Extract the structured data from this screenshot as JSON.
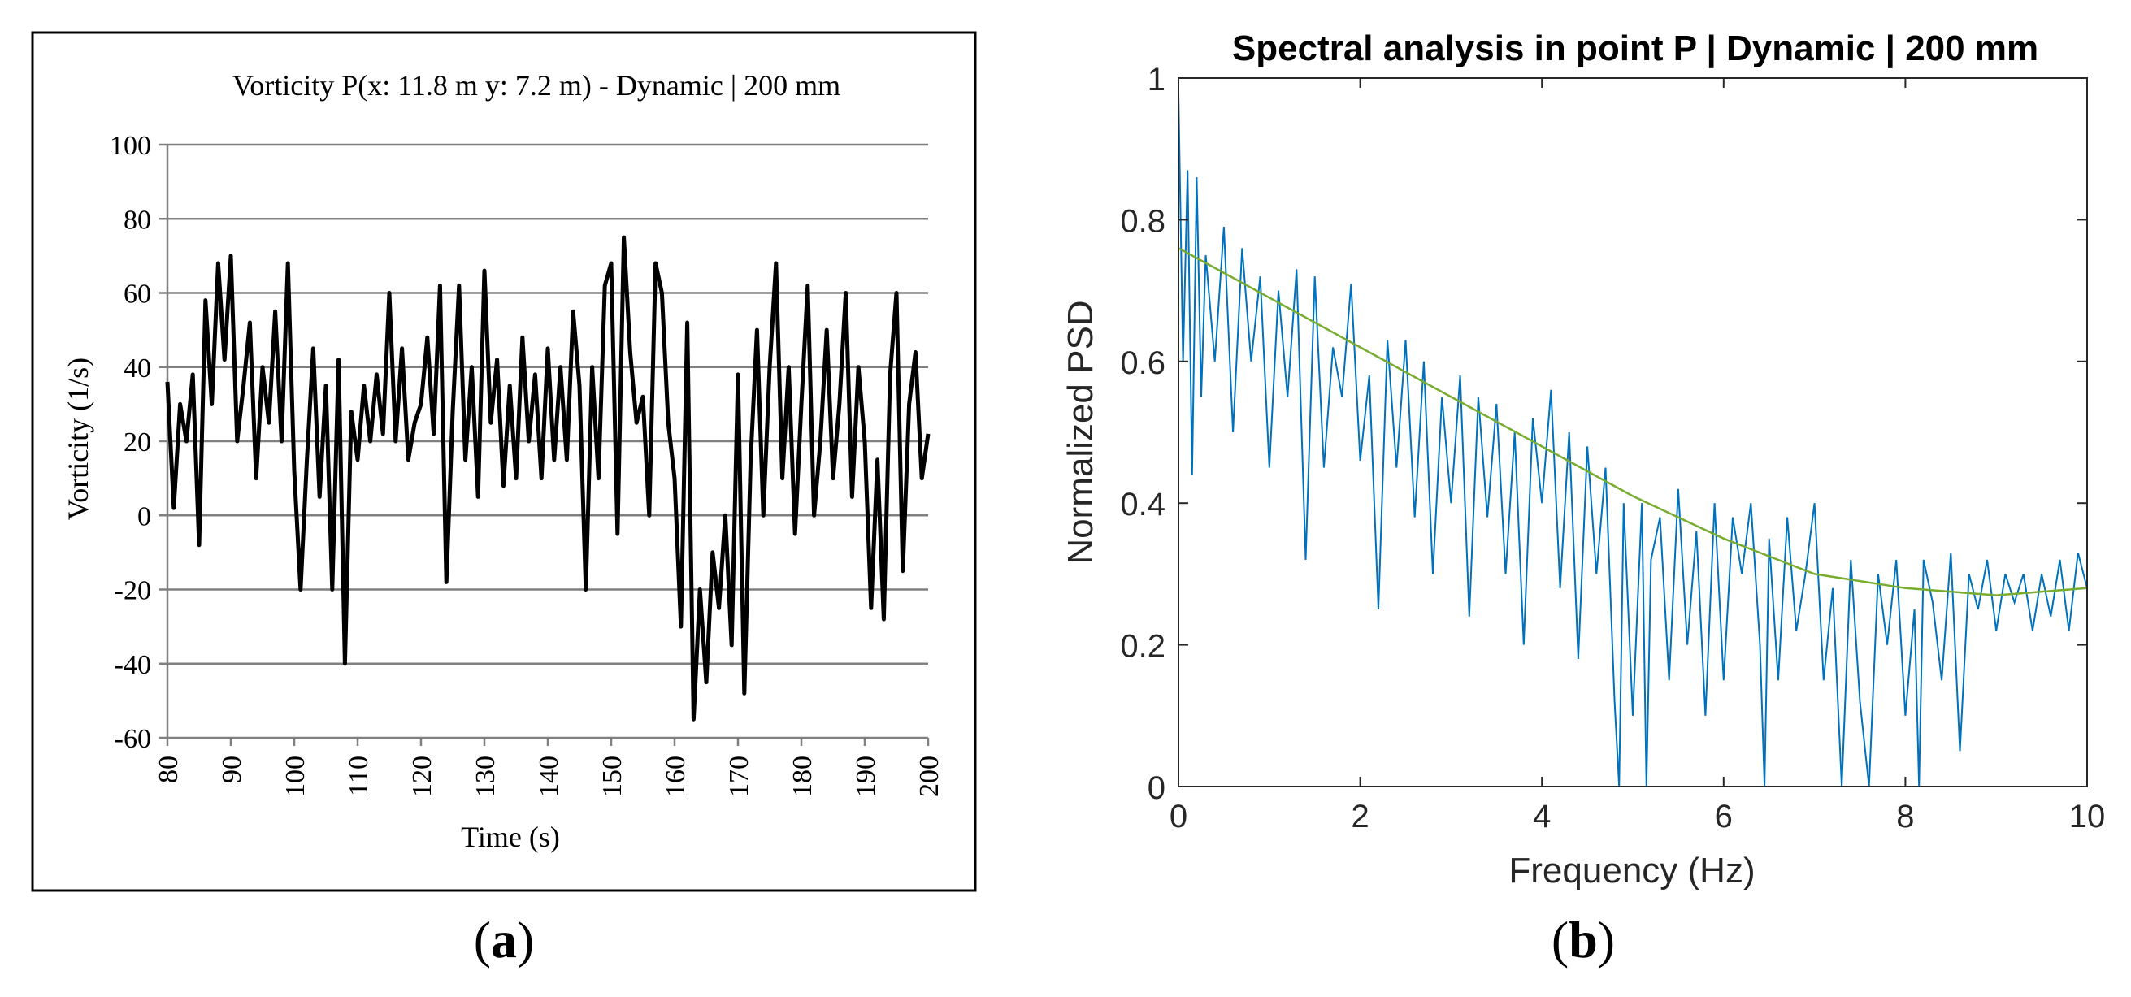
{
  "panel_labels": {
    "a": {
      "open": "(",
      "letter": "a",
      "close": ")"
    },
    "b": {
      "open": "(",
      "letter": "b",
      "close": ")"
    }
  },
  "colors": {
    "panel_a_line": "#000000",
    "panel_a_grid": "#808080",
    "panel_b_psd": "#0072BD",
    "panel_b_fit": "#77AC30"
  },
  "chart_data": [
    {
      "id": "a",
      "type": "line",
      "title": "Vorticity P(x: 11.8 m y: 7.2 m) - Dynamic  | 200 mm",
      "xlabel": "Time (s)",
      "ylabel": "Vorticity (1/s)",
      "xlim": [
        80,
        200
      ],
      "ylim": [
        -60,
        100
      ],
      "xticks": [
        80,
        90,
        100,
        110,
        120,
        130,
        140,
        150,
        160,
        170,
        180,
        190,
        200
      ],
      "yticks": [
        100,
        80,
        60,
        40,
        20,
        0,
        -20,
        -40,
        -60
      ],
      "grid": "horizontal",
      "legend": "none",
      "series": [
        {
          "x": [
            80,
            81,
            82,
            83,
            84,
            85,
            86,
            87,
            88,
            89,
            90,
            91,
            92,
            93,
            94,
            95,
            96,
            97,
            98,
            99,
            100,
            101,
            102,
            103,
            104,
            105,
            106,
            107,
            108,
            109,
            110,
            111,
            112,
            113,
            114,
            115,
            116,
            117,
            118,
            119,
            120,
            121,
            122,
            123,
            124,
            125,
            126,
            127,
            128,
            129,
            130,
            131,
            132,
            133,
            134,
            135,
            136,
            137,
            138,
            139,
            140,
            141,
            142,
            143,
            144,
            145,
            146,
            147,
            148,
            149,
            150,
            151,
            152,
            153,
            154,
            155,
            156,
            157,
            158,
            159,
            160,
            161,
            162,
            163,
            164,
            165,
            166,
            167,
            168,
            169,
            170,
            171,
            172,
            173,
            174,
            175,
            176,
            177,
            178,
            179,
            180,
            181,
            182,
            183,
            184,
            185,
            186,
            187,
            188,
            189,
            190,
            191,
            192,
            193,
            194,
            195,
            196,
            197,
            198,
            199,
            200
          ],
          "y": [
            36,
            2,
            30,
            20,
            38,
            -8,
            58,
            30,
            68,
            42,
            70,
            20,
            35,
            52,
            10,
            40,
            25,
            55,
            20,
            68,
            12,
            -20,
            15,
            45,
            5,
            35,
            -20,
            42,
            -40,
            28,
            15,
            35,
            20,
            38,
            22,
            60,
            20,
            45,
            15,
            25,
            30,
            48,
            22,
            62,
            -18,
            28,
            62,
            15,
            40,
            5,
            66,
            25,
            42,
            8,
            35,
            10,
            48,
            20,
            38,
            10,
            45,
            15,
            40,
            15,
            55,
            35,
            -20,
            40,
            10,
            62,
            68,
            -5,
            75,
            44,
            25,
            32,
            0,
            68,
            60,
            25,
            10,
            -30,
            52,
            -55,
            -20,
            -45,
            -10,
            -25,
            0,
            -35,
            38,
            -48,
            15,
            50,
            0,
            40,
            68,
            10,
            40,
            -5,
            30,
            62,
            0,
            20,
            50,
            10,
            30,
            60,
            5,
            40,
            20,
            -25,
            15,
            -28,
            38,
            60,
            -15,
            30,
            44,
            10,
            22
          ]
        }
      ]
    },
    {
      "id": "b",
      "type": "line",
      "title": "Spectral analysis in point P | Dynamic | 200 mm",
      "xlabel": "Frequency (Hz)",
      "ylabel": "Normalized PSD",
      "xlim": [
        0,
        10
      ],
      "ylim": [
        0,
        1
      ],
      "xticks": [
        0,
        2,
        4,
        6,
        8,
        10
      ],
      "yticks": [
        0,
        0.2,
        0.4,
        0.6,
        0.8,
        1
      ],
      "grid": "off",
      "legend": "none",
      "series": [
        {
          "style": "psd",
          "x": [
            0,
            0.05,
            0.1,
            0.15,
            0.2,
            0.25,
            0.3,
            0.4,
            0.5,
            0.6,
            0.7,
            0.8,
            0.9,
            1.0,
            1.1,
            1.2,
            1.3,
            1.4,
            1.5,
            1.6,
            1.7,
            1.8,
            1.9,
            2.0,
            2.1,
            2.2,
            2.3,
            2.4,
            2.5,
            2.6,
            2.7,
            2.8,
            2.9,
            3.0,
            3.1,
            3.2,
            3.3,
            3.4,
            3.5,
            3.6,
            3.7,
            3.8,
            3.9,
            4.0,
            4.1,
            4.2,
            4.3,
            4.4,
            4.5,
            4.6,
            4.7,
            4.8,
            4.85,
            4.9,
            5.0,
            5.1,
            5.15,
            5.2,
            5.3,
            5.4,
            5.5,
            5.6,
            5.7,
            5.8,
            5.9,
            6.0,
            6.1,
            6.2,
            6.3,
            6.4,
            6.45,
            6.5,
            6.6,
            6.7,
            6.8,
            6.9,
            7.0,
            7.1,
            7.2,
            7.3,
            7.4,
            7.5,
            7.6,
            7.7,
            7.8,
            7.9,
            8.0,
            8.1,
            8.15,
            8.2,
            8.3,
            8.4,
            8.5,
            8.6,
            8.7,
            8.8,
            8.9,
            9.0,
            9.1,
            9.2,
            9.3,
            9.4,
            9.5,
            9.6,
            9.7,
            9.8,
            9.9,
            10.0
          ],
          "y": [
            0.98,
            0.6,
            0.87,
            0.44,
            0.86,
            0.55,
            0.75,
            0.6,
            0.79,
            0.5,
            0.76,
            0.6,
            0.72,
            0.45,
            0.7,
            0.55,
            0.73,
            0.32,
            0.72,
            0.45,
            0.62,
            0.55,
            0.71,
            0.46,
            0.58,
            0.25,
            0.63,
            0.45,
            0.63,
            0.38,
            0.6,
            0.3,
            0.55,
            0.4,
            0.58,
            0.24,
            0.55,
            0.38,
            0.54,
            0.3,
            0.5,
            0.2,
            0.52,
            0.4,
            0.56,
            0.28,
            0.5,
            0.18,
            0.48,
            0.3,
            0.45,
            0.12,
            0.0,
            0.4,
            0.1,
            0.4,
            0.0,
            0.32,
            0.38,
            0.15,
            0.42,
            0.2,
            0.36,
            0.1,
            0.4,
            0.15,
            0.38,
            0.3,
            0.4,
            0.2,
            0.0,
            0.35,
            0.15,
            0.38,
            0.22,
            0.3,
            0.4,
            0.15,
            0.28,
            0.0,
            0.32,
            0.12,
            0.0,
            0.3,
            0.2,
            0.32,
            0.1,
            0.25,
            0.0,
            0.32,
            0.26,
            0.15,
            0.33,
            0.05,
            0.3,
            0.25,
            0.32,
            0.22,
            0.3,
            0.26,
            0.3,
            0.22,
            0.3,
            0.24,
            0.32,
            0.22,
            0.33,
            0.28
          ]
        },
        {
          "style": "fit",
          "x": [
            0,
            1,
            2,
            3,
            4,
            5,
            6,
            7,
            8,
            9,
            10
          ],
          "y": [
            0.76,
            0.69,
            0.62,
            0.55,
            0.48,
            0.41,
            0.35,
            0.3,
            0.28,
            0.27,
            0.28
          ]
        }
      ]
    }
  ]
}
